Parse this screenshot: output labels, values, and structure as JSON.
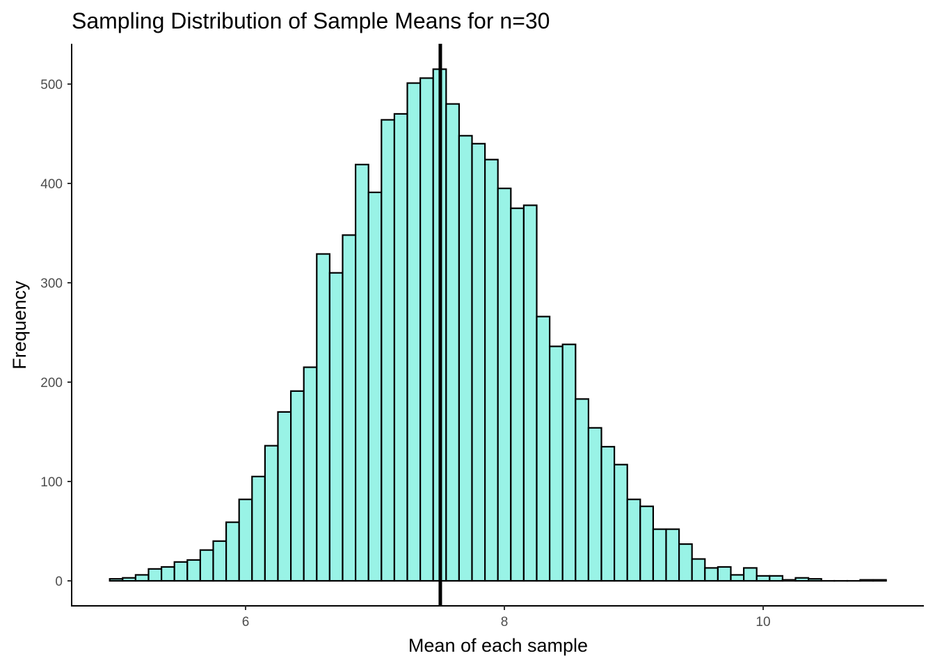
{
  "chart_data": {
    "type": "bar",
    "title": "Sampling Distribution of Sample Means for n=30",
    "xlabel": "Mean of each sample",
    "ylabel": "Frequency",
    "bin_width": 0.1,
    "x": [
      5.0,
      5.1,
      5.2,
      5.3,
      5.4,
      5.5,
      5.6,
      5.7,
      5.8,
      5.9,
      6.0,
      6.1,
      6.2,
      6.3,
      6.4,
      6.5,
      6.6,
      6.7,
      6.8,
      6.9,
      7.0,
      7.1,
      7.2,
      7.3,
      7.4,
      7.5,
      7.6,
      7.7,
      7.8,
      7.9,
      8.0,
      8.1,
      8.2,
      8.3,
      8.4,
      8.5,
      8.6,
      8.7,
      8.8,
      8.9,
      9.0,
      9.1,
      9.2,
      9.3,
      9.4,
      9.5,
      9.6,
      9.7,
      9.8,
      9.9,
      10.0,
      10.1,
      10.2,
      10.3,
      10.4,
      10.5,
      10.6,
      10.7,
      10.8,
      10.9
    ],
    "values": [
      2,
      3,
      6,
      12,
      14,
      19,
      21,
      31,
      40,
      59,
      82,
      105,
      136,
      170,
      191,
      215,
      329,
      310,
      348,
      419,
      391,
      464,
      470,
      501,
      506,
      515,
      480,
      448,
      440,
      424,
      395,
      375,
      378,
      266,
      236,
      238,
      183,
      154,
      135,
      117,
      82,
      75,
      52,
      52,
      37,
      22,
      13,
      14,
      6,
      13,
      5,
      5,
      1,
      3,
      2,
      0,
      0,
      0,
      1,
      1
    ],
    "mean_line": 7.505,
    "xlim": [
      4.7,
      11.3
    ],
    "ylim": [
      -25,
      540
    ],
    "xticks": [
      6,
      8,
      10
    ],
    "xtick_labels": [
      "6",
      "8",
      "10"
    ],
    "yticks": [
      0,
      100,
      200,
      300,
      400,
      500
    ],
    "ytick_labels": [
      "0",
      "100",
      "200",
      "300",
      "400",
      "500"
    ],
    "grid": false,
    "colors": {
      "fill": "#99F3E6",
      "stroke": "#000000",
      "mean_line": "#000000"
    }
  }
}
